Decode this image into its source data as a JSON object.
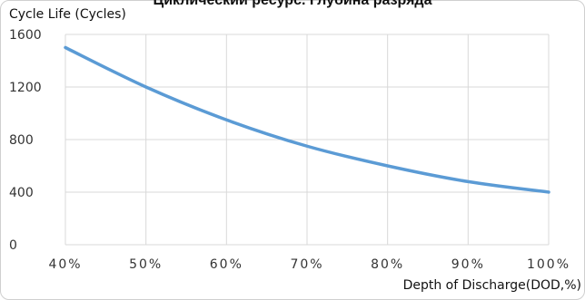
{
  "chart_data": {
    "type": "line",
    "title": "Циклический ресурс. Глубина разряда",
    "xlabel": "Depth of Discharge(DOD,%)",
    "ylabel": "Cycle Life (Cycles)",
    "x_tick_labels": [
      "40%",
      "50%",
      "60%",
      "70%",
      "80%",
      "90%",
      "100%"
    ],
    "y_tick_labels": [
      "0",
      "400",
      "800",
      "1200",
      "1600"
    ],
    "xlim": [
      40,
      100
    ],
    "ylim": [
      0,
      1600
    ],
    "grid": true,
    "line_color": "#5b9bd5",
    "grid_color": "#d9d9d9",
    "series": [
      {
        "x": [
          40,
          50,
          60,
          70,
          80,
          90,
          100
        ],
        "values": [
          1500,
          1200,
          950,
          750,
          600,
          480,
          400
        ]
      }
    ]
  }
}
